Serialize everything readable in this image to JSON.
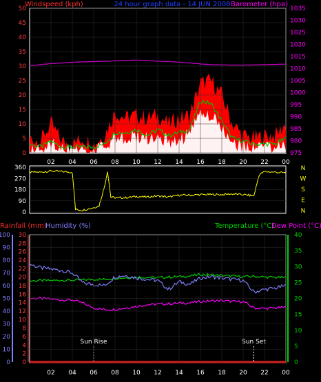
{
  "header": {
    "left_title": "Windspeed (kph)",
    "center_title": "24 hour graph data - 14 JUN 2008",
    "right_title": "Barometer (hpa)"
  },
  "bottom_header": {
    "rainfall_label": "Rainfall (mm)",
    "humidity_label": "Humidity (%)",
    "temperature_label": "Temperature (°C)",
    "dewpoint_label": "Dew Point (°C)"
  },
  "annotations": {
    "sunrise": "Sun Rise",
    "sunset": "Sun Set"
  },
  "colors": {
    "wind_gust": "#ff0000",
    "wind_avg": "#00c000",
    "wind_speed": "#ffffff",
    "barometer": "#d000d0",
    "direction": "#ffff00",
    "rain": "#ff2020",
    "humidity": "#8080ff",
    "temperature": "#00d000",
    "dewpoint": "#ff00ff",
    "axis_left": "#ff4040",
    "axis_right": "#ff00ff"
  },
  "chart_data": [
    {
      "type": "area",
      "name": "wind",
      "x_ticks": [
        "02",
        "04",
        "06",
        "08",
        "10",
        "12",
        "14",
        "16",
        "18",
        "20",
        "22",
        "00"
      ],
      "y_ticks": [
        0,
        5,
        10,
        15,
        20,
        25,
        30,
        35,
        40,
        45,
        50
      ],
      "ylim": [
        0,
        50
      ],
      "ylabel": "Windspeed (kph)",
      "y2_ticks": [
        975,
        980,
        985,
        990,
        995,
        1000,
        1005,
        1010,
        1015,
        1020,
        1025,
        1030,
        1035
      ],
      "y2lim": [
        975,
        1035
      ],
      "y2label": "Barometer (hpa)",
      "hours": [
        0,
        1,
        2,
        3,
        4,
        5,
        6,
        7,
        8,
        9,
        10,
        11,
        12,
        13,
        14,
        15,
        16,
        17,
        18,
        19,
        20,
        21,
        22,
        23,
        24
      ],
      "series": [
        {
          "key": "gust",
          "values": [
            5,
            4,
            10,
            4,
            3,
            5,
            3,
            6,
            14,
            12,
            13,
            12,
            13,
            10,
            12,
            13,
            24,
            25,
            20,
            10,
            6,
            5,
            6,
            6,
            10
          ]
        },
        {
          "key": "average",
          "values": [
            3,
            2,
            4,
            2,
            2,
            2,
            2,
            3,
            7,
            7,
            8,
            6,
            8,
            6,
            7,
            8,
            18,
            17,
            11,
            5,
            4,
            3,
            3,
            3,
            5
          ]
        },
        {
          "key": "speed",
          "values": [
            1,
            1,
            3,
            1,
            1,
            1,
            1,
            2,
            5,
            5,
            6,
            5,
            6,
            4,
            5,
            6,
            14,
            13,
            8,
            3,
            2,
            2,
            2,
            2,
            3
          ]
        },
        {
          "key": "barometer",
          "values": [
            1011.2,
            1011.6,
            1012.0,
            1012.3,
            1012.6,
            1012.7,
            1012.9,
            1013.0,
            1013.2,
            1013.4,
            1013.5,
            1013.3,
            1013.0,
            1012.9,
            1012.6,
            1012.3,
            1011.9,
            1011.6,
            1011.5,
            1011.4,
            1011.4,
            1011.5,
            1011.6,
            1011.7,
            1011.8
          ]
        }
      ]
    },
    {
      "type": "line",
      "name": "wind_direction",
      "y_ticks": [
        0,
        90,
        180,
        270,
        360
      ],
      "ylim": [
        0,
        360
      ],
      "compass": [
        "N",
        "W",
        "S",
        "E",
        "N"
      ],
      "hours": [
        0,
        1,
        2,
        3,
        4,
        4.3,
        5,
        6,
        6.5,
        7,
        7.3,
        7.6,
        8,
        9,
        10,
        11,
        12,
        13,
        14,
        15,
        16,
        17,
        18,
        19,
        20,
        21,
        21.5,
        22,
        23,
        24
      ],
      "values": [
        320,
        320,
        330,
        325,
        320,
        20,
        15,
        35,
        50,
        200,
        330,
        120,
        115,
        115,
        125,
        120,
        130,
        120,
        135,
        135,
        140,
        140,
        140,
        145,
        140,
        130,
        300,
        325,
        320,
        315
      ]
    },
    {
      "type": "line",
      "name": "climate",
      "x_ticks": [
        "02",
        "04",
        "06",
        "08",
        "10",
        "12",
        "14",
        "16",
        "18",
        "20",
        "22",
        "00"
      ],
      "y_ticks_humidity": [
        0,
        10,
        20,
        30,
        40,
        50,
        60,
        70,
        80,
        90,
        100
      ],
      "y_ticks_rain": [
        0,
        2,
        4,
        6,
        8,
        10,
        12,
        14,
        16,
        18,
        20,
        22,
        24,
        26,
        28,
        30
      ],
      "y_ticks_temp": [
        0,
        5,
        10,
        15,
        20,
        25,
        30,
        35,
        40
      ],
      "ylim_humidity": [
        0,
        100
      ],
      "ylim_rain": [
        0,
        30
      ],
      "ylim_temp": [
        0,
        40
      ],
      "hours": [
        0,
        1,
        2,
        3,
        4,
        5,
        6,
        7,
        8,
        9,
        10,
        11,
        12,
        13,
        14,
        15,
        16,
        17,
        18,
        19,
        20,
        21,
        22,
        23,
        24
      ],
      "series": [
        {
          "key": "rainfall",
          "values": [
            0,
            0,
            0,
            0,
            0,
            0,
            0,
            0,
            0,
            0,
            0,
            0,
            0,
            0,
            0,
            0,
            0,
            0,
            0,
            0,
            0,
            0,
            0,
            0,
            0
          ]
        },
        {
          "key": "humidity",
          "values": [
            77,
            74,
            73,
            72,
            70,
            62,
            61,
            60,
            67,
            68,
            66,
            65,
            64,
            57,
            63,
            61,
            66,
            67,
            66,
            65,
            64,
            55,
            57,
            58,
            60
          ]
        },
        {
          "key": "temperature",
          "values": [
            25.5,
            25.6,
            25.6,
            25.7,
            25.7,
            25.8,
            26.0,
            26.0,
            26.3,
            26.5,
            26.7,
            26.6,
            26.5,
            26.7,
            26.8,
            27.0,
            27.5,
            27.4,
            27.2,
            27.0,
            26.8,
            26.9,
            26.7,
            26.6,
            26.5
          ]
        },
        {
          "key": "dewpoint",
          "values": [
            20.0,
            20.0,
            19.8,
            19.5,
            19.5,
            18.5,
            17.0,
            16.5,
            16.5,
            17.0,
            17.5,
            18.0,
            18.2,
            18.3,
            18.5,
            18.6,
            19.0,
            19.2,
            19.3,
            19.0,
            19.0,
            17.0,
            16.8,
            17.0,
            17.2
          ]
        }
      ],
      "markers": [
        {
          "label_key": "sunrise",
          "hour": 6.0
        },
        {
          "label_key": "sunset",
          "hour": 21.0
        }
      ]
    }
  ]
}
